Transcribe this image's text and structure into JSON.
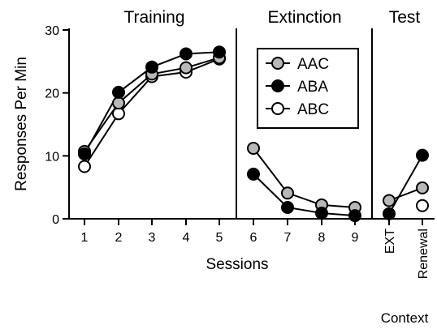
{
  "chart_data": {
    "type": "line",
    "phases": [
      "Training",
      "Extinction",
      "Test"
    ],
    "ylabel": "Responses Per Min",
    "xlabel": "Sessions",
    "context_label": "Context",
    "ylim": [
      0,
      30
    ],
    "yticks": [
      "0",
      "10",
      "20",
      "30"
    ],
    "categories": [
      "1",
      "2",
      "3",
      "4",
      "5",
      "6",
      "7",
      "8",
      "9",
      "EXT",
      "Renewal"
    ],
    "legend": {
      "placement": "top-center"
    },
    "series": [
      {
        "name": "AAC",
        "marker_fill": "#b8b8b8",
        "values": [
          10.7,
          18.4,
          23.0,
          24.0,
          25.6,
          11.2,
          4.1,
          2.2,
          1.8,
          2.9,
          4.9
        ]
      },
      {
        "name": "ABA",
        "marker_fill": "#000000",
        "values": [
          10.3,
          20.1,
          24.1,
          26.2,
          26.5,
          7.1,
          1.8,
          0.9,
          0.5,
          0.8,
          10.1
        ]
      },
      {
        "name": "ABC",
        "marker_fill": "#ffffff",
        "values": [
          8.3,
          16.7,
          22.6,
          23.3,
          25.4,
          null,
          null,
          null,
          null,
          null,
          2.1
        ]
      }
    ]
  }
}
